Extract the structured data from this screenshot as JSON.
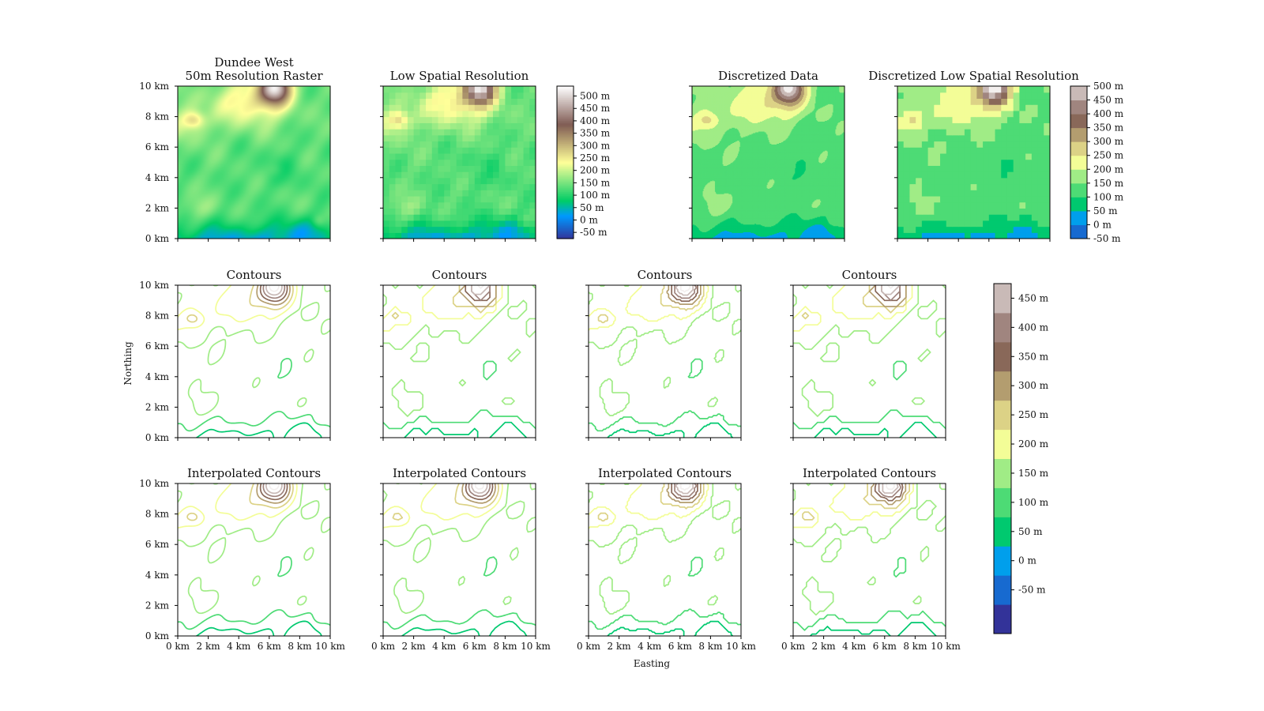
{
  "chart_data": {
    "type": "heatmap",
    "figure": {
      "xlabel": "Easting",
      "ylabel": "Northing"
    },
    "axis_ticks": [
      "0 km",
      "2 km",
      "4 km",
      "6 km",
      "8 km",
      "10 km"
    ],
    "xlim_km": [
      0,
      10
    ],
    "ylim_km": [
      0,
      10
    ],
    "colormap": "terrain",
    "colorbars": [
      {
        "id": "continuous",
        "type": "continuous",
        "range_m": [
          -75,
          540
        ],
        "tick_values_m": [
          -50,
          0,
          50,
          100,
          150,
          200,
          250,
          300,
          350,
          400,
          450,
          500
        ],
        "tick_labels": [
          "-50 m",
          "0 m",
          "50 m",
          "100 m",
          "150 m",
          "200 m",
          "250 m",
          "300 m",
          "350 m",
          "400 m",
          "450 m",
          "500 m"
        ]
      },
      {
        "id": "discrete-top",
        "type": "discrete",
        "bounds_m": [
          -50,
          0,
          50,
          100,
          150,
          200,
          250,
          300,
          350,
          400,
          450,
          500
        ],
        "tick_labels": [
          "-50 m",
          "0 m",
          "50 m",
          "100 m",
          "150 m",
          "200 m",
          "250 m",
          "300 m",
          "350 m",
          "400 m",
          "450 m",
          "500 m"
        ]
      },
      {
        "id": "discrete-contours",
        "type": "discrete",
        "level_centers_m": [
          -75,
          -25,
          25,
          75,
          125,
          175,
          225,
          275,
          325,
          375,
          425,
          475
        ],
        "tick_values_m": [
          -50,
          0,
          50,
          100,
          150,
          200,
          250,
          300,
          350,
          400,
          450
        ],
        "tick_labels": [
          "-50 m",
          "0 m",
          "50 m",
          "100 m",
          "150 m",
          "200 m",
          "250 m",
          "300 m",
          "350 m",
          "400 m",
          "450 m"
        ]
      }
    ],
    "panels": [
      {
        "id": "raw",
        "title_lines": [
          "Dundee West",
          "50m Resolution Raster"
        ],
        "kind": "raster",
        "resolution_km": 0.05
      },
      {
        "id": "lowres",
        "title_lines": [
          "Low Spatial Resolution"
        ],
        "kind": "raster",
        "resolution_km": 0.4
      },
      {
        "id": "disc",
        "title_lines": [
          "Discretized Data"
        ],
        "kind": "filled-levels",
        "resolution_km": 0.05
      },
      {
        "id": "disclow",
        "title_lines": [
          "Discretized Low Spatial Resolution"
        ],
        "kind": "filled-levels",
        "resolution_km": 0.4
      },
      {
        "id": "c1",
        "title_lines": [
          "Contours"
        ],
        "kind": "contour-lines",
        "source": "raw"
      },
      {
        "id": "c2",
        "title_lines": [
          "Contours"
        ],
        "kind": "contour-lines",
        "source": "lowres"
      },
      {
        "id": "c3",
        "title_lines": [
          "Contours"
        ],
        "kind": "contour-lines",
        "source": "disc"
      },
      {
        "id": "c4",
        "title_lines": [
          "Contours"
        ],
        "kind": "contour-lines",
        "source": "disclow"
      },
      {
        "id": "i1",
        "title_lines": [
          "Interpolated Contours"
        ],
        "kind": "contour-lines",
        "source": "raw"
      },
      {
        "id": "i2",
        "title_lines": [
          "Interpolated Contours"
        ],
        "kind": "contour-lines",
        "source": "lowres"
      },
      {
        "id": "i3",
        "title_lines": [
          "Interpolated Contours"
        ],
        "kind": "contour-lines",
        "source": "disc"
      },
      {
        "id": "i4",
        "title_lines": [
          "Interpolated Contours"
        ],
        "kind": "contour-lines",
        "source": "disclow"
      }
    ]
  }
}
